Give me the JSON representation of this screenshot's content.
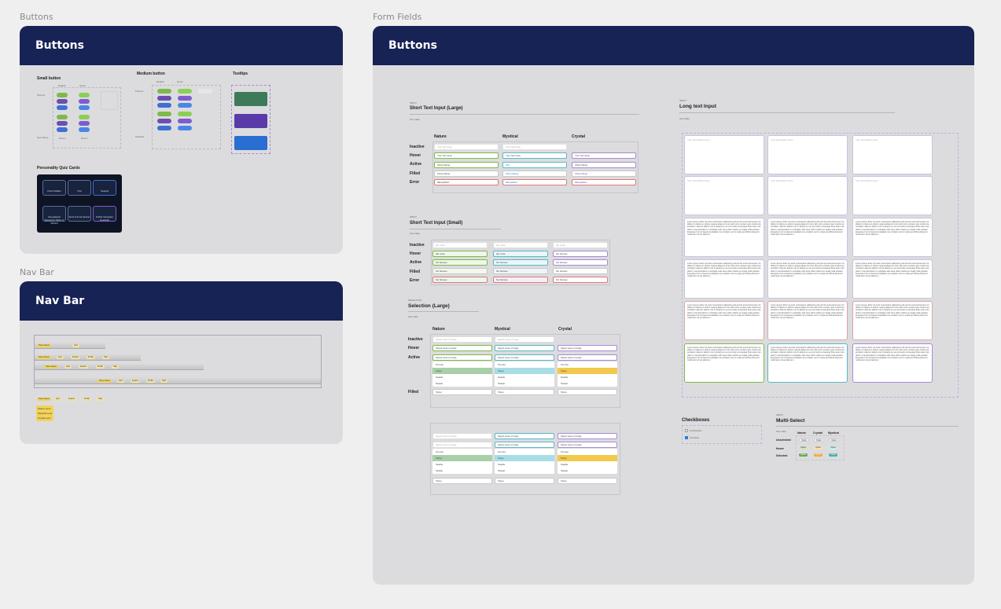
{
  "canvas": {
    "frame_labels": {
      "buttons": "Buttons",
      "navbar": "Nav Bar",
      "formfields": "Form Fields"
    }
  },
  "buttons_frame": {
    "header": "Buttons",
    "small_button": {
      "title": "Small button",
      "col1": "Default",
      "col2": "Hover",
      "row1": "Primary",
      "row2": "Secondary",
      "label": "Button"
    },
    "medium_button": {
      "title": "Medium button",
      "col1": "Default",
      "col2": "Hover",
      "row1": "Primary",
      "row2": "Outlined",
      "label": "Button"
    },
    "tooltips": {
      "title": "Tooltips"
    },
    "quiz_cards": {
      "title": "Personality Quiz Cards",
      "cards": [
        {
          "label": "Cloud Walker"
        },
        {
          "label": "Owl"
        },
        {
          "label": "Seagull"
        },
        {
          "label": "Intergalactic Wanderer Witch or Wizard"
        },
        {
          "label": "Spirit Animal Seeker"
        },
        {
          "label": "Stellar Navigator Guardian"
        }
      ]
    },
    "colors": {
      "nature": "#6aa84f",
      "mystical": "#6a4fb3",
      "crystal": "#2a7fd4",
      "header": "#172255"
    }
  },
  "navbar_frame": {
    "header": "Nav Bar",
    "chips": [
      "Home Sweet",
      "Quiz",
      "Explore",
      "Profile",
      "Help"
    ],
    "list": [
      "Nature Lens",
      "Mystical Lens",
      "Crystal Lens"
    ]
  },
  "form_frame": {
    "header": "Buttons",
    "short_large": {
      "kicker": "INPUT",
      "title": "Short Text Input (Large)",
      "subtitle": "Text state",
      "cols": [
        "Nature",
        "Mystical",
        "Crystal"
      ],
      "rows": [
        "Inactive",
        "Hover",
        "Active",
        "Filled",
        "Error"
      ],
      "placeholder": "Your full name",
      "filled_value": "Olivia Wang",
      "active_value": "Oliv",
      "error_value": "#Eriqw$hcz"
    },
    "short_small": {
      "kicker": "INPUT",
      "title": "Short Text Input (Small)",
      "subtitle": "Text state",
      "rows": [
        "Inactive",
        "Hover",
        "Active",
        "Filled",
        "Error"
      ],
      "placeholder": "Zip code",
      "value": "Six Names"
    },
    "selection_large": {
      "kicker": "SELECTION",
      "title": "Selection (Large)",
      "subtitle": "Text state",
      "cols": [
        "Nature",
        "Mystical",
        "Crystal"
      ],
      "rows": [
        "Inactive",
        "Hover",
        "Active",
        "Filled"
      ],
      "placeholder": "Select level of study",
      "options": [
        "Toronto",
        "Tokyo",
        "Seattle",
        "Taiwan"
      ],
      "filled_value": "Tokyo"
    },
    "long_text": {
      "kicker": "INPUT",
      "title": "Long text Input",
      "subtitle": "Text state",
      "placeholder": "Your description here...",
      "lorem": "Lorem ipsum dolor sit amet consectetur adipiscing elit sed do eiusmod tempor incididunt ut labore et dolore magna aliqua Ut enim ad minim veniam quis nostrud exercitation ullamco laboris nisi ut aliquip ex ea commodo consequat Duis aute irure dolor in reprehenderit in voluptate velit esse cillum dolore eu fugiat nulla pariatur Excepteur sint occaecat cupidatat non proident sunt in culpa qui officia deserunt mollit anim id est laborum"
    },
    "checkboxes": {
      "title": "Checkboxes",
      "items": [
        "Unchecked",
        "Checked"
      ]
    },
    "multi_select": {
      "kicker": "INPUT",
      "title": "Multi-Select",
      "subtitle": "Text state",
      "cols": [
        "Nature",
        "Crystal",
        "Mystical"
      ],
      "rows": [
        "Unselected",
        "Hover",
        "Selected"
      ],
      "chip": "Option"
    }
  }
}
